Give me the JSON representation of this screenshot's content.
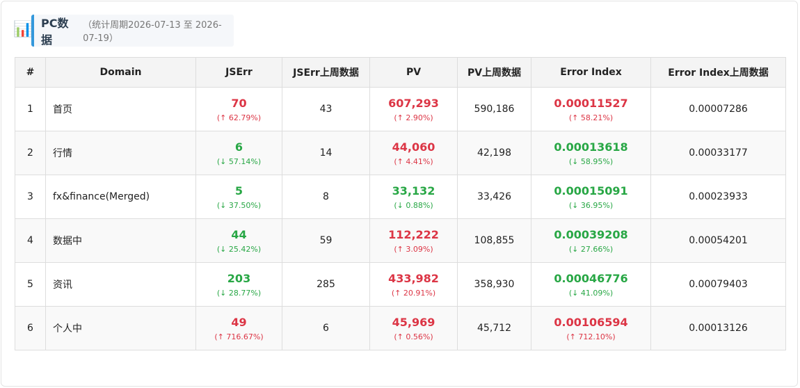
{
  "header": {
    "icon": "📊",
    "title": "PC数据",
    "subtitle": "（统计周期2026-07-13 至 2026-07-19）"
  },
  "table": {
    "columns": [
      "#",
      "Domain",
      "JSErr",
      "JSErr上周数据",
      "PV",
      "PV上周数据",
      "Error Index",
      "Error Index上周数据"
    ],
    "rows": [
      [
        "1",
        "首页",
        {
          "value": "70",
          "change": "(↑ 62.79%)",
          "color": "#dc3545"
        },
        "43",
        {
          "value": "607,293",
          "change": "(↑ 2.90%)",
          "color": "#dc3545"
        },
        "590,186",
        {
          "value": "0.00011527",
          "change": "(↑ 58.21%)",
          "color": "#dc3545"
        },
        "0.00007286"
      ],
      [
        "2",
        "行情",
        {
          "value": "6",
          "change": "(↓ 57.14%)",
          "color": "#28a745"
        },
        "14",
        {
          "value": "44,060",
          "change": "(↑ 4.41%)",
          "color": "#dc3545"
        },
        "42,198",
        {
          "value": "0.00013618",
          "change": "(↓ 58.95%)",
          "color": "#28a745"
        },
        "0.00033177"
      ],
      [
        "3",
        "fx&finance(Merged)",
        {
          "value": "5",
          "change": "(↓ 37.50%)",
          "color": "#28a745"
        },
        "8",
        {
          "value": "33,132",
          "change": "(↓ 0.88%)",
          "color": "#28a745"
        },
        "33,426",
        {
          "value": "0.00015091",
          "change": "(↓ 36.95%)",
          "color": "#28a745"
        },
        "0.00023933"
      ],
      [
        "4",
        "数据中",
        {
          "value": "44",
          "change": "(↓ 25.42%)",
          "color": "#28a745"
        },
        "59",
        {
          "value": "112,222",
          "change": "(↑ 3.09%)",
          "color": "#dc3545"
        },
        "108,855",
        {
          "value": "0.00039208",
          "change": "(↓ 27.66%)",
          "color": "#28a745"
        },
        "0.00054201"
      ],
      [
        "5",
        "资讯",
        {
          "value": "203",
          "change": "(↓ 28.77%)",
          "color": "#28a745"
        },
        "285",
        {
          "value": "433,982",
          "change": "(↑ 20.91%)",
          "color": "#dc3545"
        },
        "358,930",
        {
          "value": "0.00046776",
          "change": "(↓ 41.09%)",
          "color": "#28a745"
        },
        "0.00079403"
      ],
      [
        "6",
        "个人中",
        {
          "value": "49",
          "change": "(↑ 716.67%)",
          "color": "#dc3545"
        },
        "6",
        {
          "value": "45,969",
          "change": "(↑ 0.56%)",
          "color": "#dc3545"
        },
        "45,712",
        {
          "value": "0.00106594",
          "change": "(↑ 712.10%)",
          "color": "#dc3545"
        },
        "0.00013126"
      ]
    ]
  }
}
